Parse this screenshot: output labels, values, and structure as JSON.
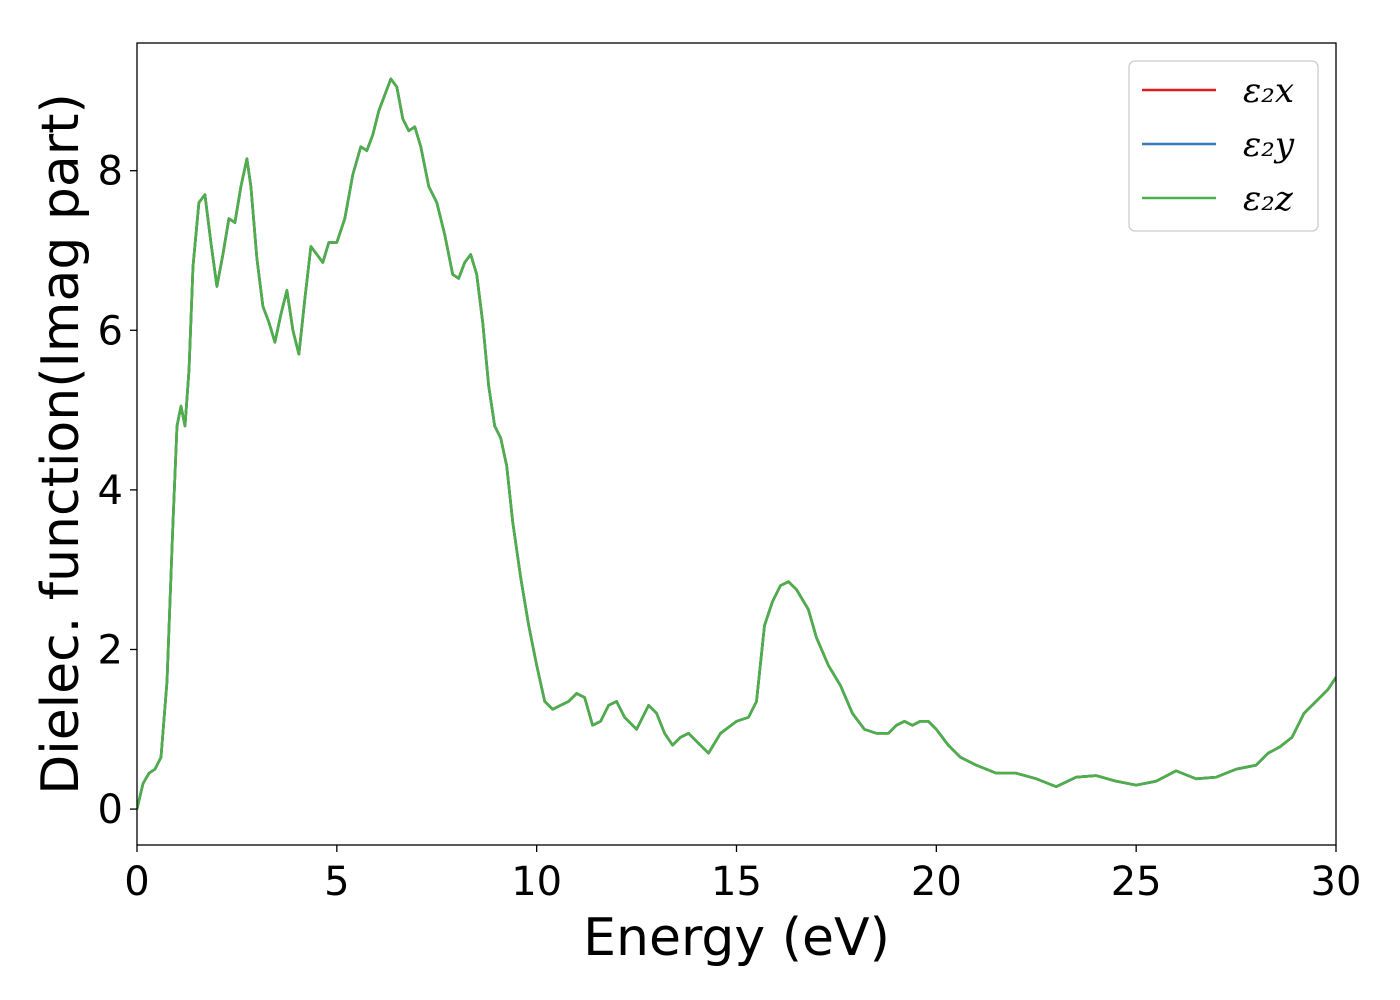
{
  "chart_data": {
    "type": "line",
    "xlabel": "Energy (eV)",
    "ylabel": "Dielec. function(Imag part)",
    "xlim": [
      0,
      30
    ],
    "ylim": [
      -0.45,
      9.6
    ],
    "xticks": [
      0,
      5,
      10,
      15,
      20,
      25,
      30
    ],
    "xtick_labels": [
      "0",
      "5",
      "10",
      "15",
      "20",
      "25",
      "30"
    ],
    "yticks": [
      0,
      2,
      4,
      6,
      8
    ],
    "ytick_labels": [
      "0",
      "2",
      "4",
      "6",
      "8"
    ],
    "grid": false,
    "legend_position": "top-right",
    "series": [
      {
        "name": "ε₂x",
        "color": "#e41a1c",
        "x": [
          0,
          0.15,
          0.3,
          0.45,
          0.6,
          0.75,
          0.9,
          1.0,
          1.1,
          1.2,
          1.3,
          1.4,
          1.55,
          1.7,
          1.85,
          2.0,
          2.15,
          2.3,
          2.45,
          2.6,
          2.75,
          2.85,
          3.0,
          3.15,
          3.3,
          3.45,
          3.6,
          3.75,
          3.9,
          4.05,
          4.2,
          4.35,
          4.5,
          4.65,
          4.8,
          5.0,
          5.2,
          5.4,
          5.6,
          5.75,
          5.9,
          6.05,
          6.2,
          6.35,
          6.5,
          6.65,
          6.8,
          6.95,
          7.1,
          7.3,
          7.5,
          7.7,
          7.9,
          8.05,
          8.2,
          8.35,
          8.5,
          8.65,
          8.8,
          8.95,
          9.1,
          9.25,
          9.4,
          9.6,
          9.8,
          10.0,
          10.2,
          10.4,
          10.6,
          10.8,
          11.0,
          11.2,
          11.4,
          11.6,
          11.8,
          12.0,
          12.2,
          12.5,
          12.8,
          13.0,
          13.2,
          13.4,
          13.6,
          13.8,
          14.0,
          14.3,
          14.6,
          15.0,
          15.3,
          15.5,
          15.7,
          15.9,
          16.1,
          16.3,
          16.5,
          16.8,
          17.0,
          17.3,
          17.6,
          17.9,
          18.2,
          18.5,
          18.8,
          19.0,
          19.2,
          19.4,
          19.6,
          19.8,
          20.0,
          20.3,
          20.6,
          21.0,
          21.5,
          22.0,
          22.5,
          23.0,
          23.5,
          24.0,
          24.5,
          25.0,
          25.5,
          26.0,
          26.5,
          27.0,
          27.5,
          28.0,
          28.3,
          28.6,
          28.9,
          29.2,
          29.5,
          29.8,
          30.0
        ],
        "y": [
          0.0,
          0.32,
          0.45,
          0.5,
          0.65,
          1.6,
          3.6,
          4.8,
          5.05,
          4.8,
          5.5,
          6.8,
          7.6,
          7.7,
          7.1,
          6.55,
          6.95,
          7.4,
          7.35,
          7.8,
          8.15,
          7.8,
          6.9,
          6.3,
          6.1,
          5.85,
          6.2,
          6.5,
          6.0,
          5.7,
          6.4,
          7.05,
          6.95,
          6.85,
          7.1,
          7.1,
          7.4,
          7.95,
          8.3,
          8.25,
          8.45,
          8.75,
          8.95,
          9.15,
          9.05,
          8.65,
          8.5,
          8.55,
          8.3,
          7.8,
          7.6,
          7.2,
          6.7,
          6.65,
          6.85,
          6.95,
          6.7,
          6.1,
          5.3,
          4.8,
          4.65,
          4.3,
          3.6,
          2.9,
          2.3,
          1.8,
          1.35,
          1.25,
          1.3,
          1.35,
          1.45,
          1.4,
          1.05,
          1.1,
          1.3,
          1.35,
          1.15,
          1.0,
          1.3,
          1.2,
          0.95,
          0.8,
          0.9,
          0.95,
          0.85,
          0.7,
          0.95,
          1.1,
          1.15,
          1.35,
          2.3,
          2.6,
          2.8,
          2.85,
          2.75,
          2.5,
          2.15,
          1.8,
          1.55,
          1.2,
          1.0,
          0.95,
          0.95,
          1.05,
          1.1,
          1.05,
          1.1,
          1.1,
          1.0,
          0.8,
          0.65,
          0.55,
          0.45,
          0.45,
          0.38,
          0.28,
          0.4,
          0.42,
          0.35,
          0.3,
          0.35,
          0.48,
          0.38,
          0.4,
          0.5,
          0.55,
          0.7,
          0.78,
          0.9,
          1.2,
          1.35,
          1.5,
          1.65
        ]
      },
      {
        "name": "ε₂y",
        "color": "#377eb8",
        "x": [
          0,
          0.15,
          0.3,
          0.45,
          0.6,
          0.75,
          0.9,
          1.0,
          1.1,
          1.2,
          1.3,
          1.4,
          1.55,
          1.7,
          1.85,
          2.0,
          2.15,
          2.3,
          2.45,
          2.6,
          2.75,
          2.85,
          3.0,
          3.15,
          3.3,
          3.45,
          3.6,
          3.75,
          3.9,
          4.05,
          4.2,
          4.35,
          4.5,
          4.65,
          4.8,
          5.0,
          5.2,
          5.4,
          5.6,
          5.75,
          5.9,
          6.05,
          6.2,
          6.35,
          6.5,
          6.65,
          6.8,
          6.95,
          7.1,
          7.3,
          7.5,
          7.7,
          7.9,
          8.05,
          8.2,
          8.35,
          8.5,
          8.65,
          8.8,
          8.95,
          9.1,
          9.25,
          9.4,
          9.6,
          9.8,
          10.0,
          10.2,
          10.4,
          10.6,
          10.8,
          11.0,
          11.2,
          11.4,
          11.6,
          11.8,
          12.0,
          12.2,
          12.5,
          12.8,
          13.0,
          13.2,
          13.4,
          13.6,
          13.8,
          14.0,
          14.3,
          14.6,
          15.0,
          15.3,
          15.5,
          15.7,
          15.9,
          16.1,
          16.3,
          16.5,
          16.8,
          17.0,
          17.3,
          17.6,
          17.9,
          18.2,
          18.5,
          18.8,
          19.0,
          19.2,
          19.4,
          19.6,
          19.8,
          20.0,
          20.3,
          20.6,
          21.0,
          21.5,
          22.0,
          22.5,
          23.0,
          23.5,
          24.0,
          24.5,
          25.0,
          25.5,
          26.0,
          26.5,
          27.0,
          27.5,
          28.0,
          28.3,
          28.6,
          28.9,
          29.2,
          29.5,
          29.8,
          30.0
        ],
        "y": [
          0.0,
          0.32,
          0.45,
          0.5,
          0.65,
          1.6,
          3.6,
          4.8,
          5.05,
          4.8,
          5.5,
          6.8,
          7.6,
          7.7,
          7.1,
          6.55,
          6.95,
          7.4,
          7.35,
          7.8,
          8.15,
          7.8,
          6.9,
          6.3,
          6.1,
          5.85,
          6.2,
          6.5,
          6.0,
          5.7,
          6.4,
          7.05,
          6.95,
          6.85,
          7.1,
          7.1,
          7.4,
          7.95,
          8.3,
          8.25,
          8.45,
          8.75,
          8.95,
          9.15,
          9.05,
          8.65,
          8.5,
          8.55,
          8.3,
          7.8,
          7.6,
          7.2,
          6.7,
          6.65,
          6.85,
          6.95,
          6.7,
          6.1,
          5.3,
          4.8,
          4.65,
          4.3,
          3.6,
          2.9,
          2.3,
          1.8,
          1.35,
          1.25,
          1.3,
          1.35,
          1.45,
          1.4,
          1.05,
          1.1,
          1.3,
          1.35,
          1.15,
          1.0,
          1.3,
          1.2,
          0.95,
          0.8,
          0.9,
          0.95,
          0.85,
          0.7,
          0.95,
          1.1,
          1.15,
          1.35,
          2.3,
          2.6,
          2.8,
          2.85,
          2.75,
          2.5,
          2.15,
          1.8,
          1.55,
          1.2,
          1.0,
          0.95,
          0.95,
          1.05,
          1.1,
          1.05,
          1.1,
          1.1,
          1.0,
          0.8,
          0.65,
          0.55,
          0.45,
          0.45,
          0.38,
          0.28,
          0.4,
          0.42,
          0.35,
          0.3,
          0.35,
          0.48,
          0.38,
          0.4,
          0.5,
          0.55,
          0.7,
          0.78,
          0.9,
          1.2,
          1.35,
          1.5,
          1.65
        ]
      },
      {
        "name": "ε₂z",
        "color": "#4daf4a",
        "x": [
          0,
          0.15,
          0.3,
          0.45,
          0.6,
          0.75,
          0.9,
          1.0,
          1.1,
          1.2,
          1.3,
          1.4,
          1.55,
          1.7,
          1.85,
          2.0,
          2.15,
          2.3,
          2.45,
          2.6,
          2.75,
          2.85,
          3.0,
          3.15,
          3.3,
          3.45,
          3.6,
          3.75,
          3.9,
          4.05,
          4.2,
          4.35,
          4.5,
          4.65,
          4.8,
          5.0,
          5.2,
          5.4,
          5.6,
          5.75,
          5.9,
          6.05,
          6.2,
          6.35,
          6.5,
          6.65,
          6.8,
          6.95,
          7.1,
          7.3,
          7.5,
          7.7,
          7.9,
          8.05,
          8.2,
          8.35,
          8.5,
          8.65,
          8.8,
          8.95,
          9.1,
          9.25,
          9.4,
          9.6,
          9.8,
          10.0,
          10.2,
          10.4,
          10.6,
          10.8,
          11.0,
          11.2,
          11.4,
          11.6,
          11.8,
          12.0,
          12.2,
          12.5,
          12.8,
          13.0,
          13.2,
          13.4,
          13.6,
          13.8,
          14.0,
          14.3,
          14.6,
          15.0,
          15.3,
          15.5,
          15.7,
          15.9,
          16.1,
          16.3,
          16.5,
          16.8,
          17.0,
          17.3,
          17.6,
          17.9,
          18.2,
          18.5,
          18.8,
          19.0,
          19.2,
          19.4,
          19.6,
          19.8,
          20.0,
          20.3,
          20.6,
          21.0,
          21.5,
          22.0,
          22.5,
          23.0,
          23.5,
          24.0,
          24.5,
          25.0,
          25.5,
          26.0,
          26.5,
          27.0,
          27.5,
          28.0,
          28.3,
          28.6,
          28.9,
          29.2,
          29.5,
          29.8,
          30.0
        ],
        "y": [
          0.0,
          0.32,
          0.45,
          0.5,
          0.65,
          1.6,
          3.6,
          4.8,
          5.05,
          4.8,
          5.5,
          6.8,
          7.6,
          7.7,
          7.1,
          6.55,
          6.95,
          7.4,
          7.35,
          7.8,
          8.15,
          7.8,
          6.9,
          6.3,
          6.1,
          5.85,
          6.2,
          6.5,
          6.0,
          5.7,
          6.4,
          7.05,
          6.95,
          6.85,
          7.1,
          7.1,
          7.4,
          7.95,
          8.3,
          8.25,
          8.45,
          8.75,
          8.95,
          9.15,
          9.05,
          8.65,
          8.5,
          8.55,
          8.3,
          7.8,
          7.6,
          7.2,
          6.7,
          6.65,
          6.85,
          6.95,
          6.7,
          6.1,
          5.3,
          4.8,
          4.65,
          4.3,
          3.6,
          2.9,
          2.3,
          1.8,
          1.35,
          1.25,
          1.3,
          1.35,
          1.45,
          1.4,
          1.05,
          1.1,
          1.3,
          1.35,
          1.15,
          1.0,
          1.3,
          1.2,
          0.95,
          0.8,
          0.9,
          0.95,
          0.85,
          0.7,
          0.95,
          1.1,
          1.15,
          1.35,
          2.3,
          2.6,
          2.8,
          2.85,
          2.75,
          2.5,
          2.15,
          1.8,
          1.55,
          1.2,
          1.0,
          0.95,
          0.95,
          1.05,
          1.1,
          1.05,
          1.1,
          1.1,
          1.0,
          0.8,
          0.65,
          0.55,
          0.45,
          0.45,
          0.38,
          0.28,
          0.4,
          0.42,
          0.35,
          0.3,
          0.35,
          0.48,
          0.38,
          0.4,
          0.5,
          0.55,
          0.7,
          0.78,
          0.9,
          1.2,
          1.35,
          1.5,
          1.65
        ]
      }
    ]
  }
}
